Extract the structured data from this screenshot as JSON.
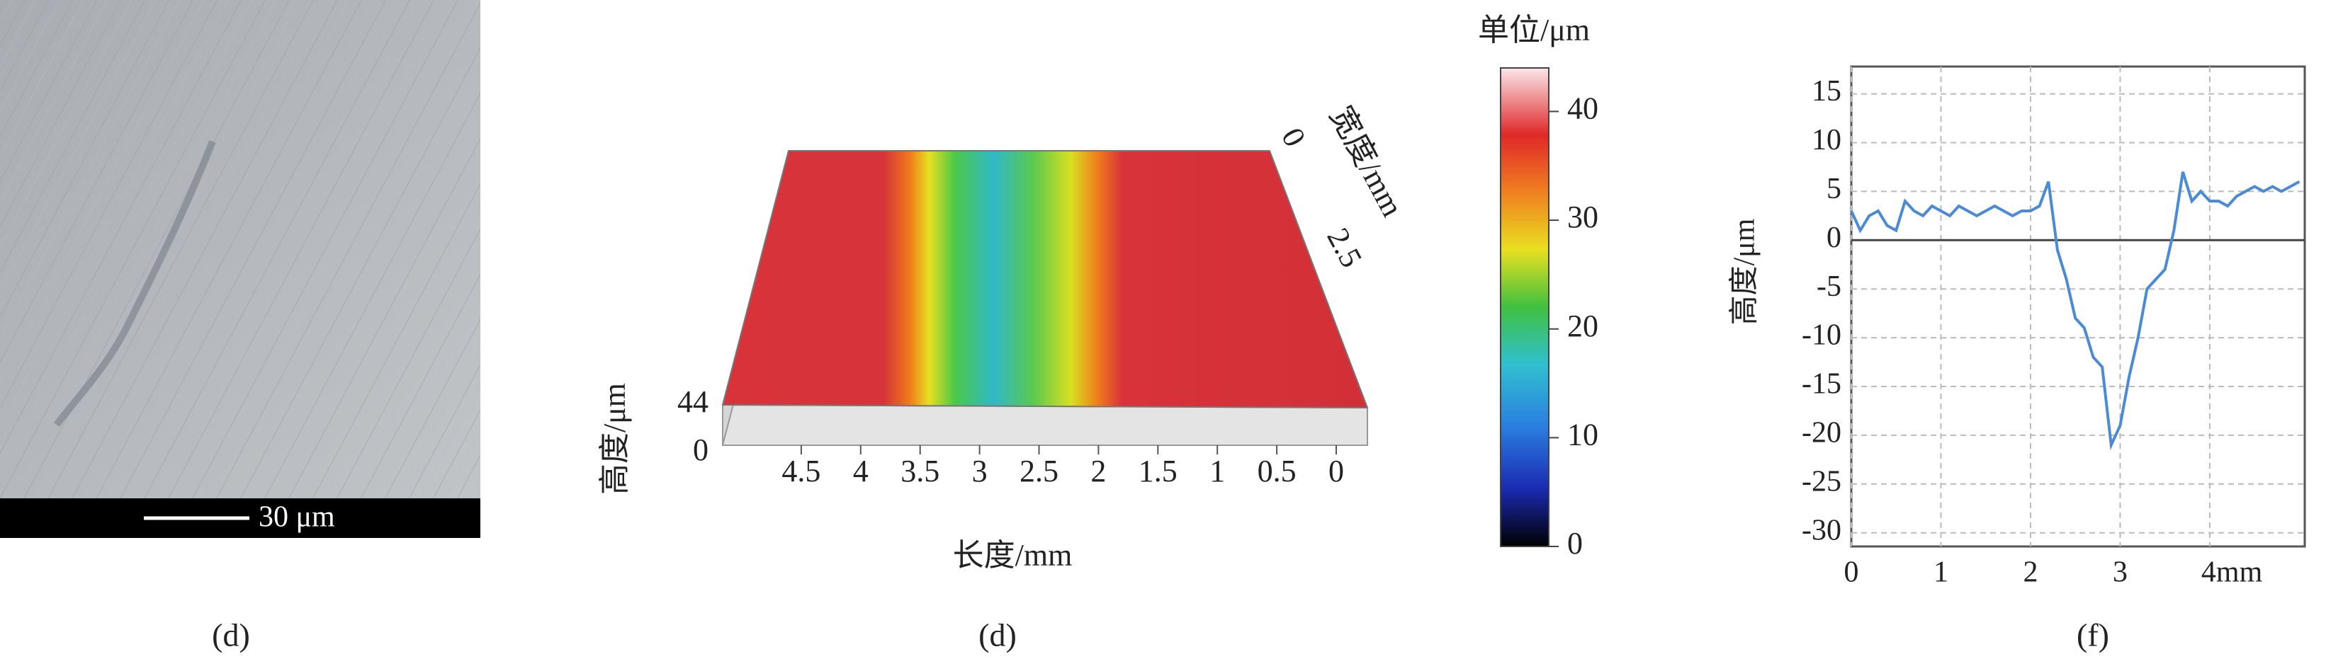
{
  "micrograph": {
    "scale_bar": "30 μm",
    "caption": "(d)"
  },
  "surface_3d": {
    "length_label": "长度/mm",
    "width_label": "宽度/mm",
    "height_label": "高度/μm",
    "length_ticks": [
      4.5,
      4.0,
      3.5,
      3.0,
      2.5,
      2.0,
      1.5,
      1.0,
      0.5,
      0
    ],
    "width_ticks": [
      0,
      2.5
    ],
    "height_ticks": [
      0,
      44
    ],
    "colorbar_title": "单位/μm",
    "colorbar_lim": [
      0,
      44
    ],
    "colorbar_ticks": [
      0,
      10,
      20,
      30,
      40
    ],
    "caption": "(d)"
  },
  "chart_data": {
    "type": "line",
    "ylabel": "高度/μm",
    "caption": "(f)",
    "x": [
      0,
      0.1,
      0.2,
      0.3,
      0.4,
      0.5,
      0.6,
      0.7,
      0.8,
      0.9,
      1.0,
      1.1,
      1.2,
      1.3,
      1.4,
      1.5,
      1.6,
      1.7,
      1.8,
      1.9,
      2.0,
      2.1,
      2.2,
      2.3,
      2.4,
      2.5,
      2.6,
      2.7,
      2.8,
      2.9,
      3.0,
      3.1,
      3.2,
      3.3,
      3.4,
      3.5,
      3.6,
      3.7,
      3.8,
      3.9,
      4.0,
      4.1,
      4.2,
      4.3,
      4.4,
      4.5,
      4.6,
      4.7,
      4.8,
      4.9,
      5.0
    ],
    "series": [
      {
        "color": "#4a8ad6",
        "values": [
          3,
          1,
          2.5,
          3,
          1.5,
          1,
          4,
          3,
          2.5,
          3.5,
          3,
          2.5,
          3.5,
          3,
          2.5,
          3,
          3.5,
          3,
          2.5,
          3,
          3,
          3.5,
          6,
          -1,
          -4,
          -8,
          -9,
          -12,
          -13,
          -21,
          -19,
          -14,
          -10,
          -5,
          -4,
          -3,
          1,
          7,
          4,
          5,
          4,
          4,
          3.5,
          4.5,
          5,
          5.5,
          5,
          5.5,
          5,
          5.5,
          6
        ]
      }
    ],
    "xlim": [
      0,
      5.06
    ],
    "ylim": [
      -31.4,
      17.8
    ],
    "xticks": [
      0,
      1,
      2,
      3,
      {
        "value": 4,
        "label": "4mm"
      }
    ],
    "yticks": [
      -30,
      -25,
      -20,
      -15,
      -10,
      -5,
      0,
      5,
      10,
      15
    ],
    "grid": true
  }
}
